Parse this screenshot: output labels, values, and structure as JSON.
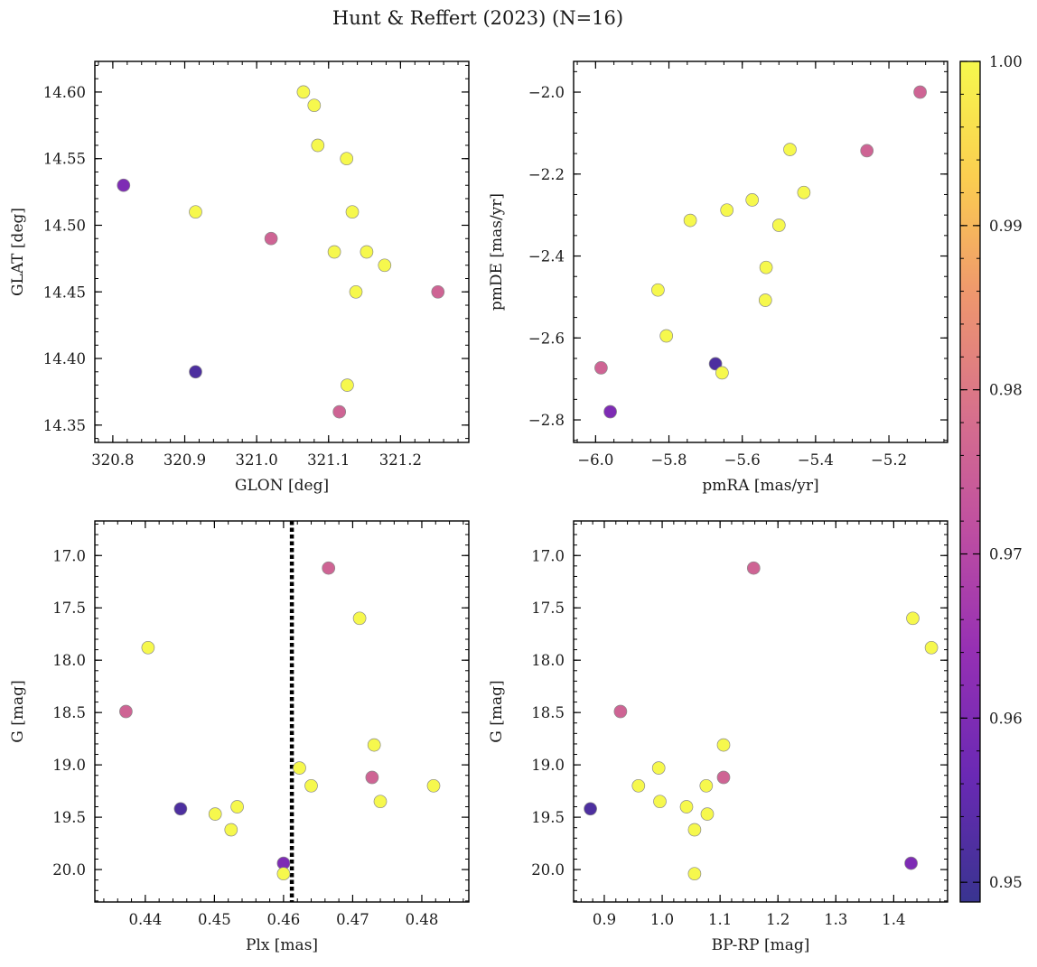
{
  "figure": {
    "title": "Hunt & Reffert (2023) (N=16)"
  },
  "colorbar": {
    "min": 0.9488,
    "max": 1.0,
    "ticks": [
      0.95,
      0.96,
      0.97,
      0.98,
      0.99,
      1.0
    ],
    "tick_labels": [
      "0.95",
      "0.96",
      "0.97",
      "0.98",
      "0.99",
      "1.00"
    ],
    "colormap": "plasma"
  },
  "chart_data": [
    {
      "type": "scatter",
      "id": "glon-glat",
      "xlabel": "GLON [deg]",
      "ylabel": "GLAT [deg]",
      "xlim": [
        320.775,
        321.295
      ],
      "ylim": [
        14.337,
        14.623
      ],
      "invert_y": false,
      "xticks": [
        320.8,
        320.9,
        321.0,
        321.1,
        321.2
      ],
      "xtick_labels": [
        "320.8",
        "320.9",
        "321.0",
        "321.1",
        "321.2"
      ],
      "yticks": [
        14.35,
        14.4,
        14.45,
        14.5,
        14.55,
        14.6
      ],
      "ytick_labels": [
        "14.35",
        "14.40",
        "14.45",
        "14.50",
        "14.55",
        "14.60"
      ],
      "x_minor": 0.02,
      "y_minor": 0.01,
      "points": [
        {
          "x": 321.065,
          "y": 14.6,
          "c": 1.0
        },
        {
          "x": 321.08,
          "y": 14.59,
          "c": 1.0
        },
        {
          "x": 321.085,
          "y": 14.56,
          "c": 1.0
        },
        {
          "x": 321.125,
          "y": 14.55,
          "c": 1.0
        },
        {
          "x": 320.815,
          "y": 14.53,
          "c": 0.96
        },
        {
          "x": 320.915,
          "y": 14.51,
          "c": 1.0
        },
        {
          "x": 321.133,
          "y": 14.51,
          "c": 1.0
        },
        {
          "x": 321.02,
          "y": 14.49,
          "c": 0.976
        },
        {
          "x": 321.108,
          "y": 14.48,
          "c": 1.0
        },
        {
          "x": 321.153,
          "y": 14.48,
          "c": 1.0
        },
        {
          "x": 321.178,
          "y": 14.47,
          "c": 1.0
        },
        {
          "x": 321.138,
          "y": 14.45,
          "c": 1.0
        },
        {
          "x": 321.252,
          "y": 14.45,
          "c": 0.976
        },
        {
          "x": 320.915,
          "y": 14.39,
          "c": 0.952
        },
        {
          "x": 321.126,
          "y": 14.38,
          "c": 1.0
        },
        {
          "x": 321.115,
          "y": 14.36,
          "c": 0.976
        }
      ]
    },
    {
      "type": "scatter",
      "id": "pmra-pmde",
      "xlabel": "pmRA [mas/yr]",
      "ylabel": "pmDE [mas/yr]",
      "xlim": [
        -6.06,
        -5.04
      ],
      "ylim": [
        -2.855,
        -1.925
      ],
      "invert_y": false,
      "xticks": [
        -6.0,
        -5.8,
        -5.6,
        -5.4,
        -5.2
      ],
      "xtick_labels": [
        "−6.0",
        "−5.8",
        "−5.6",
        "−5.4",
        "−5.2"
      ],
      "yticks": [
        -2.8,
        -2.6,
        -2.4,
        -2.2,
        -2.0
      ],
      "ytick_labels": [
        "−2.8",
        "−2.6",
        "−2.4",
        "−2.2",
        "−2.0"
      ],
      "x_minor": 0.05,
      "y_minor": 0.05,
      "points": [
        {
          "x": -5.115,
          "y": -2.0,
          "c": 0.976
        },
        {
          "x": -5.47,
          "y": -2.14,
          "c": 1.0
        },
        {
          "x": -5.26,
          "y": -2.143,
          "c": 0.976
        },
        {
          "x": -5.432,
          "y": -2.245,
          "c": 1.0
        },
        {
          "x": -5.573,
          "y": -2.263,
          "c": 1.0
        },
        {
          "x": -5.642,
          "y": -2.288,
          "c": 1.0
        },
        {
          "x": -5.742,
          "y": -2.313,
          "c": 1.0
        },
        {
          "x": -5.5,
          "y": -2.325,
          "c": 1.0
        },
        {
          "x": -5.535,
          "y": -2.428,
          "c": 1.0
        },
        {
          "x": -5.83,
          "y": -2.483,
          "c": 1.0
        },
        {
          "x": -5.537,
          "y": -2.508,
          "c": 1.0
        },
        {
          "x": -5.807,
          "y": -2.595,
          "c": 1.0
        },
        {
          "x": -5.985,
          "y": -2.673,
          "c": 0.976
        },
        {
          "x": -5.673,
          "y": -2.663,
          "c": 0.952
        },
        {
          "x": -5.655,
          "y": -2.685,
          "c": 1.0
        },
        {
          "x": -5.96,
          "y": -2.78,
          "c": 0.96
        }
      ]
    },
    {
      "type": "scatter",
      "id": "plx-g",
      "xlabel": "Plx [mas]",
      "ylabel": "G [mag]",
      "xlim": [
        0.4327,
        0.4868
      ],
      "ylim": [
        16.67,
        20.31
      ],
      "invert_y": true,
      "xticks": [
        0.44,
        0.45,
        0.46,
        0.47,
        0.48
      ],
      "xtick_labels": [
        "0.44",
        "0.45",
        "0.46",
        "0.47",
        "0.48"
      ],
      "yticks": [
        17.0,
        17.5,
        18.0,
        18.5,
        19.0,
        19.5,
        20.0
      ],
      "ytick_labels": [
        "17.0",
        "17.5",
        "18.0",
        "18.5",
        "19.0",
        "19.5",
        "20.0"
      ],
      "x_minor": 0.002,
      "y_minor": 0.1,
      "vline": {
        "x": 0.4612,
        "style": "dotted",
        "color": "#000000"
      },
      "points": [
        {
          "x": 0.4665,
          "y": 17.12,
          "c": 0.976
        },
        {
          "x": 0.471,
          "y": 17.6,
          "c": 1.0
        },
        {
          "x": 0.4404,
          "y": 17.88,
          "c": 1.0
        },
        {
          "x": 0.4372,
          "y": 18.49,
          "c": 0.976
        },
        {
          "x": 0.4731,
          "y": 18.81,
          "c": 1.0
        },
        {
          "x": 0.4623,
          "y": 19.03,
          "c": 1.0
        },
        {
          "x": 0.4728,
          "y": 19.12,
          "c": 0.976
        },
        {
          "x": 0.464,
          "y": 19.2,
          "c": 1.0
        },
        {
          "x": 0.4817,
          "y": 19.2,
          "c": 1.0
        },
        {
          "x": 0.474,
          "y": 19.35,
          "c": 1.0
        },
        {
          "x": 0.4533,
          "y": 19.4,
          "c": 1.0
        },
        {
          "x": 0.4451,
          "y": 19.42,
          "c": 0.952
        },
        {
          "x": 0.4501,
          "y": 19.47,
          "c": 1.0
        },
        {
          "x": 0.4524,
          "y": 19.62,
          "c": 1.0
        },
        {
          "x": 0.46,
          "y": 19.94,
          "c": 0.96
        },
        {
          "x": 0.46,
          "y": 20.04,
          "c": 1.0
        }
      ]
    },
    {
      "type": "scatter",
      "id": "bprp-g",
      "xlabel": "BP-RP [mag]",
      "ylabel": "G [mag]",
      "xlim": [
        0.847,
        1.493
      ],
      "ylim": [
        16.67,
        20.31
      ],
      "invert_y": true,
      "xticks": [
        0.9,
        1.0,
        1.1,
        1.2,
        1.3,
        1.4
      ],
      "xtick_labels": [
        "0.9",
        "1.0",
        "1.1",
        "1.2",
        "1.3",
        "1.4"
      ],
      "yticks": [
        17.0,
        17.5,
        18.0,
        18.5,
        19.0,
        19.5,
        20.0
      ],
      "ytick_labels": [
        "17.0",
        "17.5",
        "18.0",
        "18.5",
        "19.0",
        "19.5",
        "20.0"
      ],
      "x_minor": 0.02,
      "y_minor": 0.1,
      "points": [
        {
          "x": 1.158,
          "y": 17.12,
          "c": 0.976
        },
        {
          "x": 1.433,
          "y": 17.6,
          "c": 1.0
        },
        {
          "x": 1.465,
          "y": 17.88,
          "c": 1.0
        },
        {
          "x": 0.928,
          "y": 18.49,
          "c": 0.976
        },
        {
          "x": 1.106,
          "y": 18.81,
          "c": 1.0
        },
        {
          "x": 0.994,
          "y": 19.03,
          "c": 1.0
        },
        {
          "x": 1.106,
          "y": 19.12,
          "c": 0.976
        },
        {
          "x": 0.959,
          "y": 19.2,
          "c": 1.0
        },
        {
          "x": 1.076,
          "y": 19.2,
          "c": 1.0
        },
        {
          "x": 0.996,
          "y": 19.35,
          "c": 1.0
        },
        {
          "x": 1.042,
          "y": 19.4,
          "c": 1.0
        },
        {
          "x": 0.876,
          "y": 19.42,
          "c": 0.952
        },
        {
          "x": 1.078,
          "y": 19.47,
          "c": 1.0
        },
        {
          "x": 1.056,
          "y": 19.62,
          "c": 1.0
        },
        {
          "x": 1.43,
          "y": 19.94,
          "c": 0.96
        },
        {
          "x": 1.056,
          "y": 20.04,
          "c": 1.0
        }
      ]
    }
  ]
}
